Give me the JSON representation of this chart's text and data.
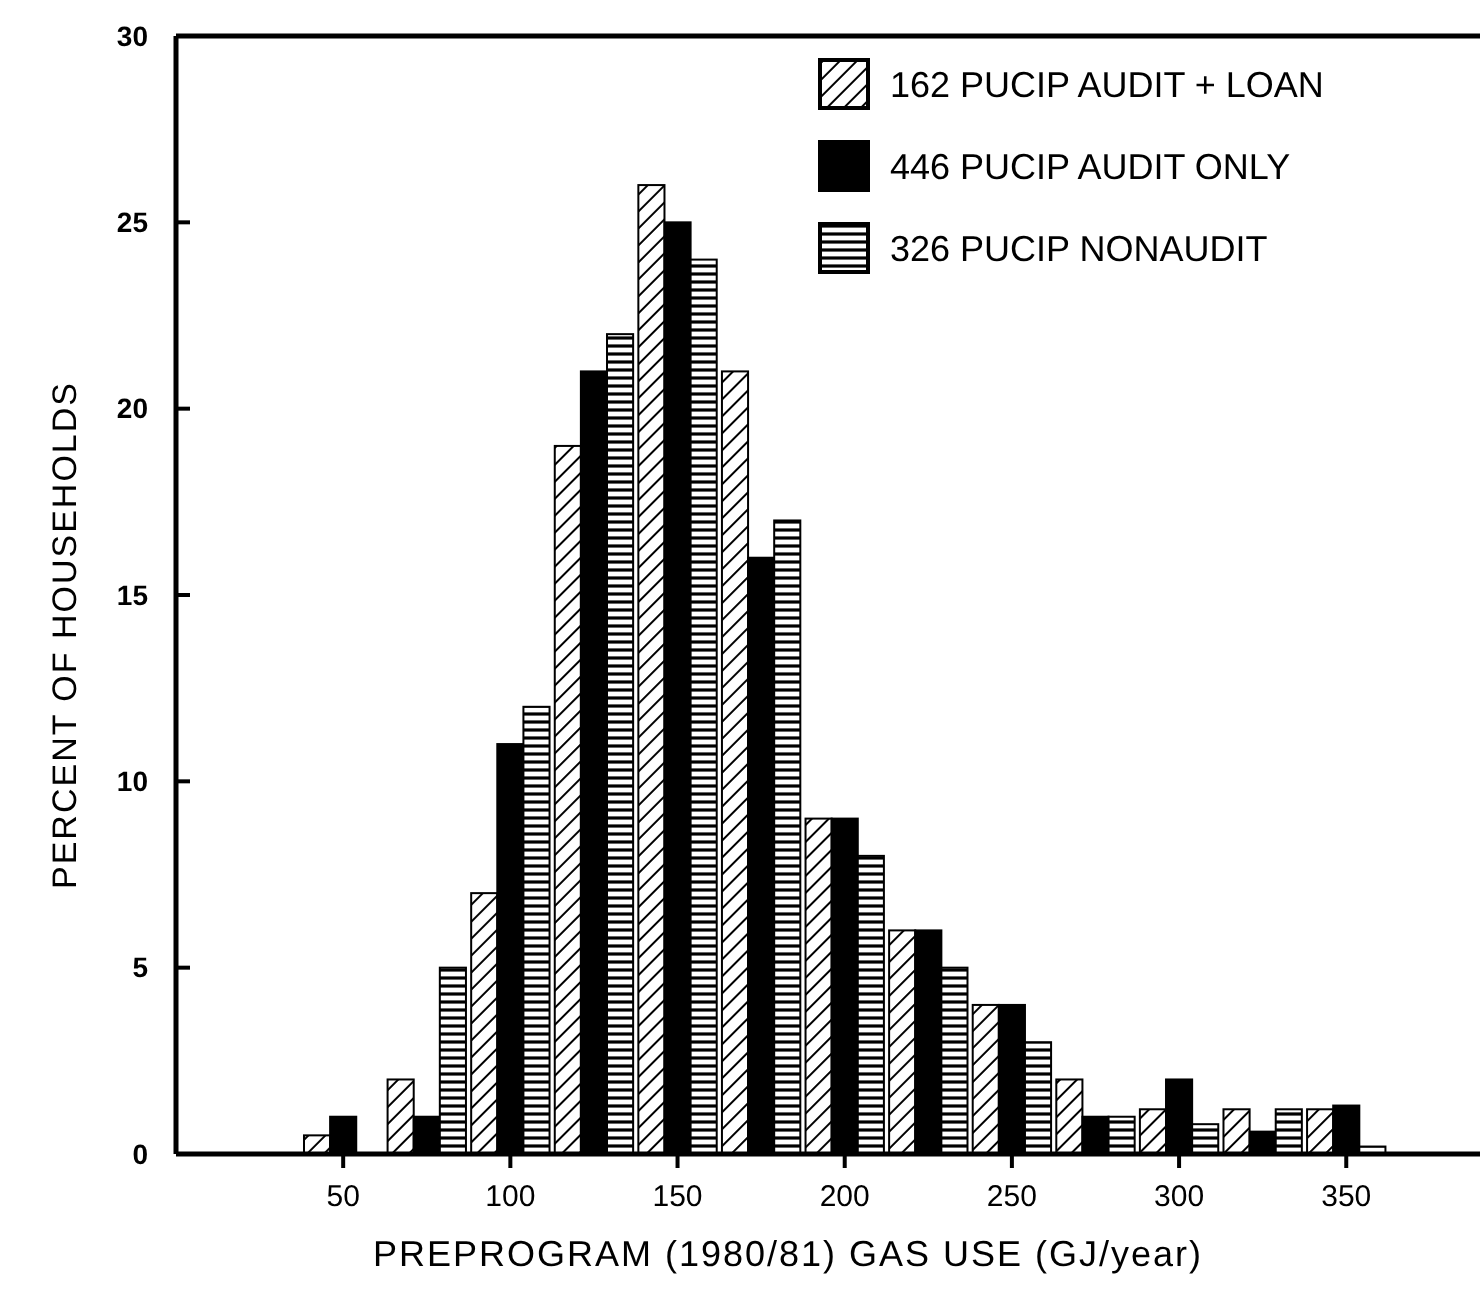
{
  "chart_data": {
    "type": "bar",
    "xlabel": "PREPROGRAM (1980/81) GAS USE (GJ/year)",
    "ylabel": "PERCENT OF HOUSEHOLDS",
    "x": [
      50,
      75,
      100,
      125,
      150,
      175,
      200,
      225,
      250,
      275,
      300,
      325,
      350
    ],
    "series": [
      {
        "name": "162 PUCIP AUDIT + LOAN",
        "color": "#000000",
        "values": [
          0.5,
          2,
          7,
          19,
          26,
          21,
          9,
          6,
          4,
          2,
          1.2,
          1.2,
          1.2
        ]
      },
      {
        "name": "446 PUCIP AUDIT ONLY",
        "color": "#000000",
        "values": [
          1,
          1,
          11,
          21,
          25,
          16,
          9,
          6,
          4,
          1,
          2,
          0.6,
          1.3
        ]
      },
      {
        "name": "326 PUCIP NONAUDIT",
        "color": "#000000",
        "values": [
          0,
          5,
          12,
          22,
          24,
          17,
          8,
          5,
          3,
          1,
          0.8,
          1.2,
          0.2
        ]
      }
    ],
    "xlim": [
      0,
      390
    ],
    "xticks": [
      {
        "value": 50,
        "label": "50"
      },
      100,
      {
        "value": 150,
        "label": "150"
      },
      200,
      {
        "value": 250,
        "label": "250"
      },
      300,
      {
        "value": 350,
        "label": "350"
      }
    ],
    "ylim": [
      0,
      30
    ],
    "yticks": [
      0,
      5,
      10,
      15,
      20,
      25,
      30
    ],
    "legend": "top right"
  }
}
